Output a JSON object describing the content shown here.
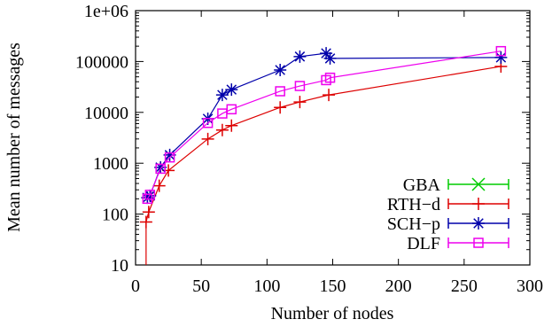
{
  "chart_data": {
    "type": "line",
    "title": "",
    "xlabel": "Number of nodes",
    "ylabel": "Mean number of messages",
    "xlim": [
      0,
      300
    ],
    "ylim": [
      10,
      1000000
    ],
    "yscale": "log",
    "grid": false,
    "legend_position": "bottom-right",
    "x_ticks": [
      0,
      50,
      100,
      150,
      200,
      250,
      300
    ],
    "x_tick_labels": [
      "0",
      "50",
      "100",
      "150",
      "200",
      "250",
      "300"
    ],
    "y_ticks": [
      10,
      100,
      1000,
      10000,
      100000,
      1000000
    ],
    "y_tick_labels": [
      "10",
      "100",
      "1000",
      "10000",
      "100000",
      "1e+06"
    ],
    "series": [
      {
        "name": "GBA",
        "color": "#00cc00",
        "marker": "x",
        "x": [],
        "y": []
      },
      {
        "name": "RTH−d",
        "color": "#dd0000",
        "marker": "plus",
        "x": [
          8,
          10,
          18,
          25,
          55,
          66,
          73,
          110,
          125,
          147,
          278
        ],
        "y": [
          70,
          110,
          360,
          720,
          3000,
          4500,
          5500,
          12500,
          16000,
          22000,
          80000
        ]
      },
      {
        "name": "SCH−p",
        "color": "#0000aa",
        "marker": "star",
        "x": [
          9,
          11,
          19,
          26,
          55,
          66,
          73,
          110,
          125,
          145,
          148,
          278
        ],
        "y": [
          210,
          230,
          830,
          1450,
          7500,
          22000,
          28000,
          68000,
          125000,
          145000,
          115000,
          120000
        ]
      },
      {
        "name": "DLF",
        "color": "#ee00ee",
        "marker": "square",
        "x": [
          9,
          11,
          19,
          26,
          55,
          66,
          73,
          110,
          125,
          145,
          148,
          278
        ],
        "y": [
          200,
          240,
          780,
          1300,
          6200,
          9500,
          11500,
          26000,
          33000,
          43000,
          48000,
          160000
        ]
      }
    ]
  }
}
